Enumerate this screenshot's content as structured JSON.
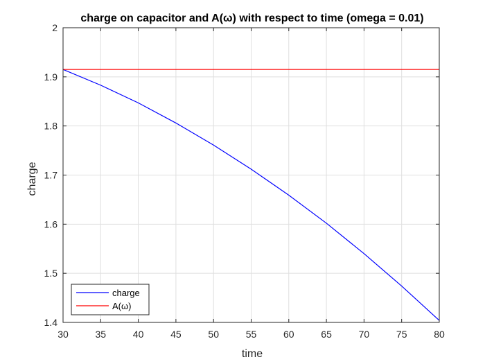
{
  "chart_data": {
    "type": "line",
    "title": "charge on capacitor and A(ω) with respect to time (omega = 0.01)",
    "xlabel": "time",
    "ylabel": "charge",
    "xlim": [
      30,
      80
    ],
    "ylim": [
      1.4,
      2.0
    ],
    "xticks": [
      "30",
      "35",
      "40",
      "45",
      "50",
      "55",
      "60",
      "65",
      "70",
      "75",
      "80"
    ],
    "yticks": [
      "1.4",
      "1.5",
      "1.6",
      "1.7",
      "1.8",
      "1.9",
      "2"
    ],
    "grid": true,
    "legend_position": "bottom-left",
    "series": [
      {
        "name": "charge",
        "color": "#0000ff",
        "x": [
          30,
          35,
          40,
          45,
          50,
          55,
          60,
          65,
          70,
          75,
          80
        ],
        "y": [
          1.915,
          1.883,
          1.847,
          1.806,
          1.761,
          1.712,
          1.659,
          1.602,
          1.54,
          1.474,
          1.404
        ]
      },
      {
        "name": "A(ω)",
        "color": "#ff0000",
        "x": [
          30,
          80
        ],
        "y": [
          1.915,
          1.915
        ]
      }
    ]
  }
}
